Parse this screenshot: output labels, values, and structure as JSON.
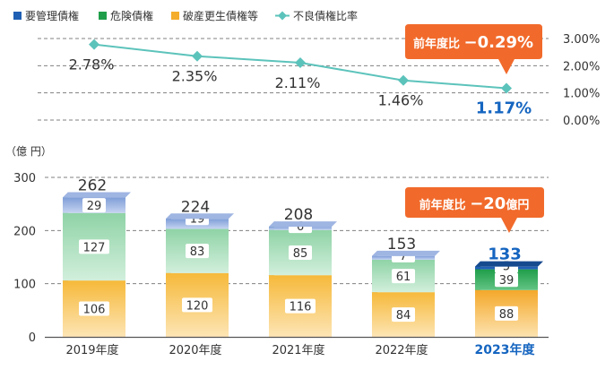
{
  "legend": [
    {
      "label": "要管理債権",
      "color": "#1f5fb4",
      "shape": "square"
    },
    {
      "label": "危険債権",
      "color": "#1f9e4a",
      "shape": "square"
    },
    {
      "label": "破産更生債権等",
      "color": "#f4ad2c",
      "shape": "square"
    },
    {
      "label": "不良債権比率",
      "color": "#5cc3bb",
      "shape": "diamond-line"
    }
  ],
  "colors": {
    "yokanri": "#1f5fb4",
    "kiken": "#1f9e4a",
    "hasan": "#f4ad2c",
    "ratio_line": "#5cc3bb",
    "callout": "#f16a2b",
    "highlight_text": "#1565c0",
    "axis_text": "#333333",
    "grid": "#808080"
  },
  "callouts": {
    "ratio": {
      "prefix": "前年度比 ",
      "value": "−0.29%"
    },
    "amount": {
      "prefix": "前年度比 ",
      "value": "−20",
      "suffix": "億円"
    }
  },
  "chart_data": [
    {
      "type": "line",
      "series": [
        {
          "name": "不良債権比率",
          "values": [
            2.78,
            2.35,
            2.11,
            1.46,
            1.17
          ]
        }
      ],
      "categories": [
        "2019年度",
        "2020年度",
        "2021年度",
        "2022年度",
        "2023年度"
      ],
      "value_labels": [
        "2.78%",
        "2.35%",
        "2.11%",
        "1.46%",
        "1.17%"
      ],
      "ylim": [
        0,
        3
      ],
      "yticks": [
        "0.00%",
        "1.00%",
        "2.00%",
        "3.00%"
      ],
      "grid": true
    },
    {
      "type": "bar",
      "stacked": true,
      "categories": [
        "2019年度",
        "2020年度",
        "2021年度",
        "2022年度",
        "2023年度"
      ],
      "series": [
        {
          "name": "破産更生債権等",
          "values": [
            106,
            120,
            116,
            84,
            88
          ]
        },
        {
          "name": "危険債権",
          "values": [
            127,
            83,
            85,
            61,
            39
          ]
        },
        {
          "name": "要管理債権",
          "values": [
            29,
            19,
            6,
            7,
            5
          ]
        }
      ],
      "totals": [
        262,
        224,
        208,
        153,
        133
      ],
      "ylabel": "（億 円）",
      "ylim": [
        0,
        300
      ],
      "yticks": [
        "0",
        "100",
        "200",
        "300"
      ],
      "grid": true,
      "highlight_category": "2023年度"
    }
  ]
}
